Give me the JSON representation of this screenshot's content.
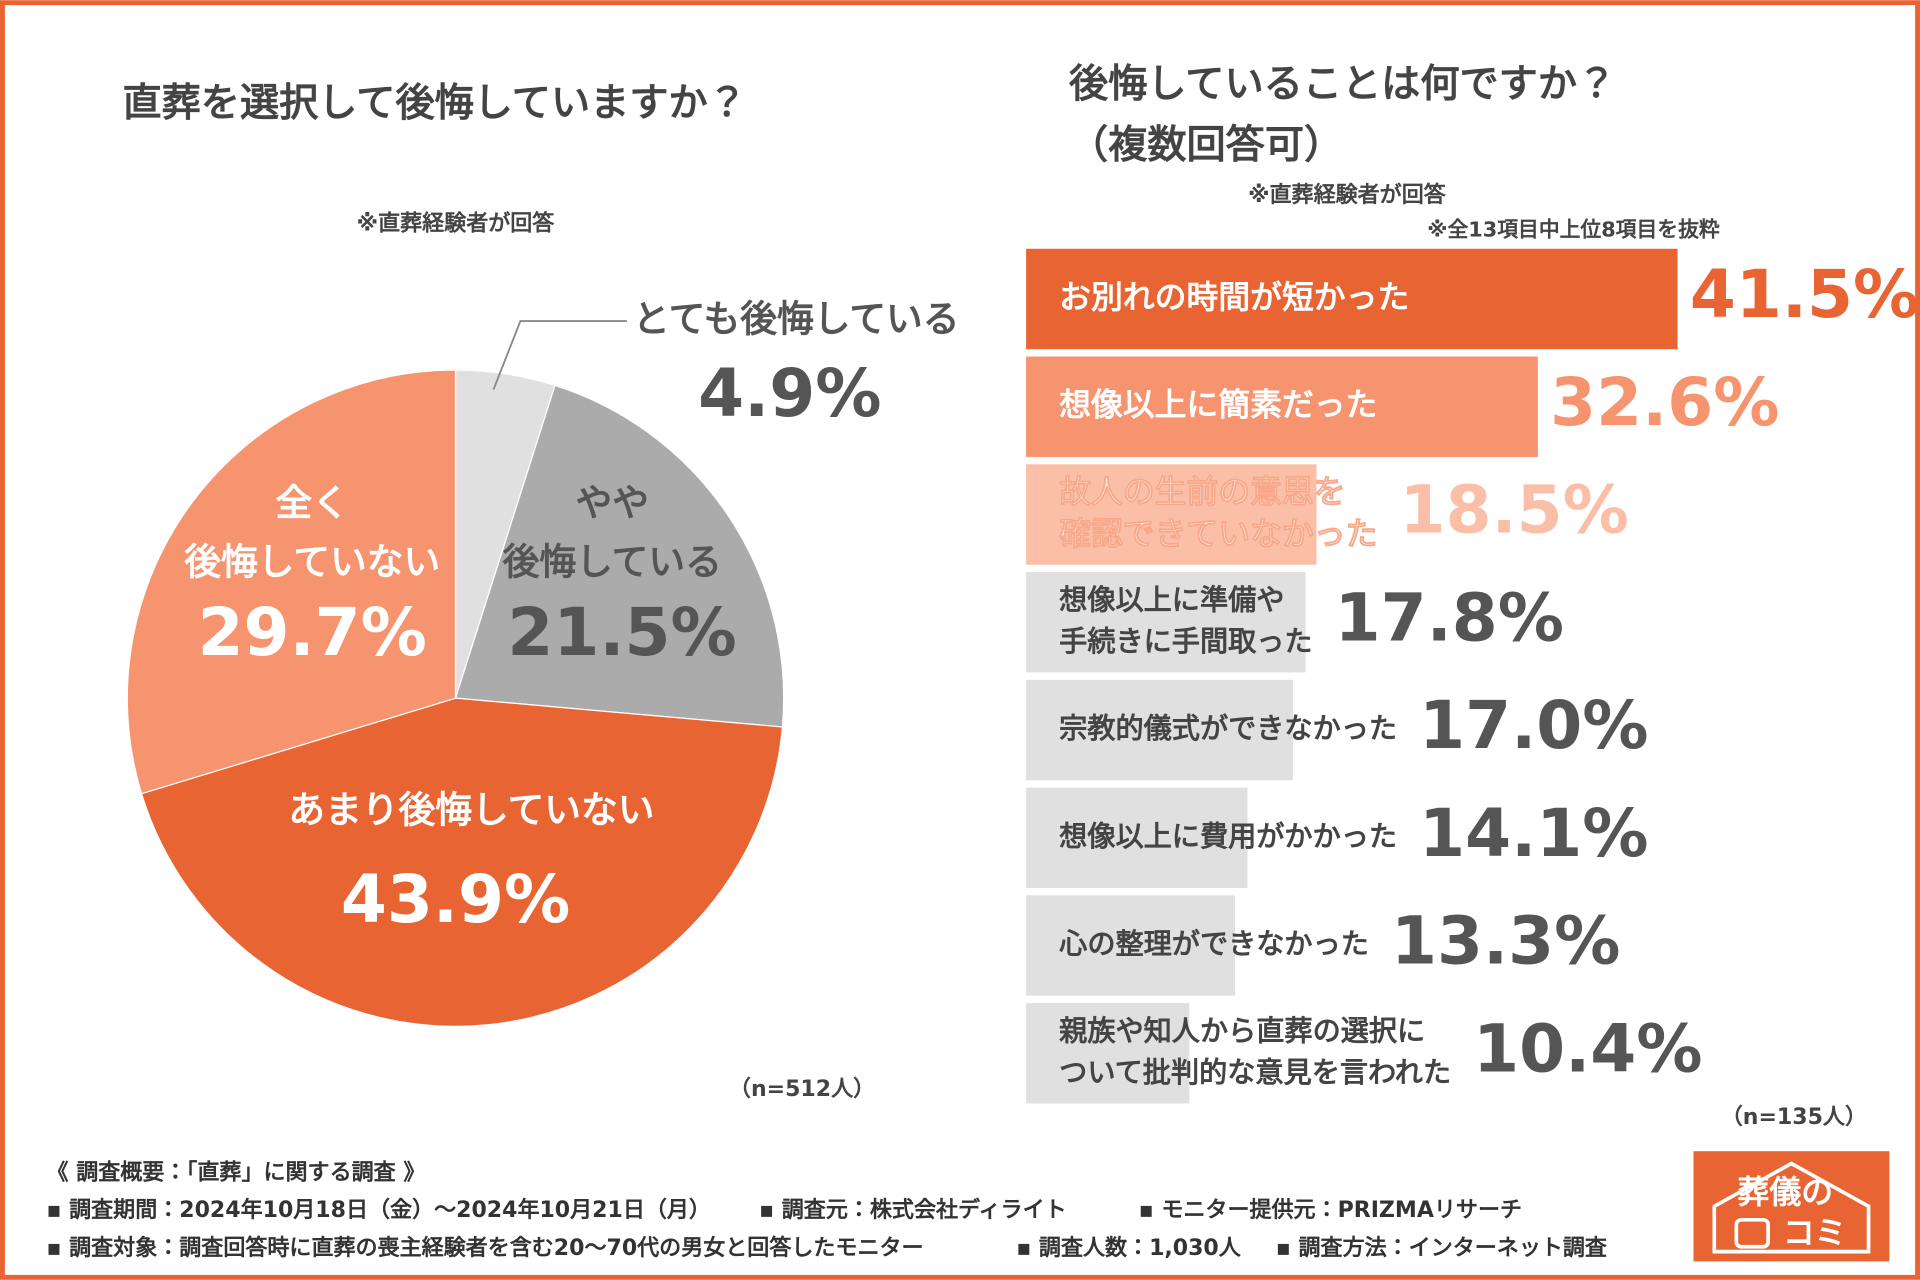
{
  "chart_data": [
    {
      "type": "pie",
      "title": "直葬を選択して後悔していますか？",
      "subtitle": "※直葬経験者が回答",
      "categories": [
        "とても後悔している",
        "やや\n後悔している",
        "あまり後悔していない",
        "全く\n後悔していない"
      ],
      "values": [
        4.9,
        21.5,
        43.9,
        29.7
      ],
      "value_labels": [
        "4.9%",
        "21.5%",
        "43.9%",
        "29.7%"
      ],
      "colors": [
        "#e0e0e0",
        "#ababab",
        "#e86433",
        "#f79470"
      ],
      "note": "（n=512人）"
    },
    {
      "type": "bar",
      "orientation": "horizontal",
      "title": "後悔していることは何ですか？\n（複数回答可）",
      "subtitle": "※直葬経験者が回答",
      "annotation": "※全13項目中上位8項目を抜粋",
      "categories": [
        "お別れの時間が短かった",
        "想像以上に簡素だった",
        "故人の生前の意思を\n確認できていなかった",
        "想像以上に準備や\n手続きに手間取った",
        "宗教的儀式ができなかった",
        "想像以上に費用がかかった",
        "心の整理ができなかった",
        "親族や知人から直葬の選択に\nついて批判的な意見を言われた"
      ],
      "values": [
        41.5,
        32.6,
        18.5,
        17.8,
        17.0,
        14.1,
        13.3,
        10.4
      ],
      "value_labels": [
        "41.5%",
        "32.6%",
        "18.5%",
        "17.8%",
        "17.0%",
        "14.1%",
        "13.3%",
        "10.4%"
      ],
      "colors": [
        "#e86433",
        "#f79470",
        "#fbbfa8",
        "#e0e0e0",
        "#e0e0e0",
        "#e0e0e0",
        "#e0e0e0",
        "#e0e0e0"
      ],
      "note": "（n=135人）"
    }
  ],
  "footer": {
    "title": "《 調査概要：「直葬」に関する調査 》",
    "rows": [
      [
        "▪ 調査期間：2024年10月18日（金）～2024年10月21日（月）",
        "▪ 調査元：株式会社ディライト",
        "▪ モニター提供元：PRIZMAリサーチ"
      ],
      [
        "▪ 調査対象：調査回答時に直葬の喪主経験者を含む20～70代の男女と回答したモニター",
        "▪ 調査人数：1,030人",
        "▪ 調査方法：インターネット調査"
      ]
    ]
  },
  "logo": [
    "葬儀の",
    "コミ"
  ]
}
